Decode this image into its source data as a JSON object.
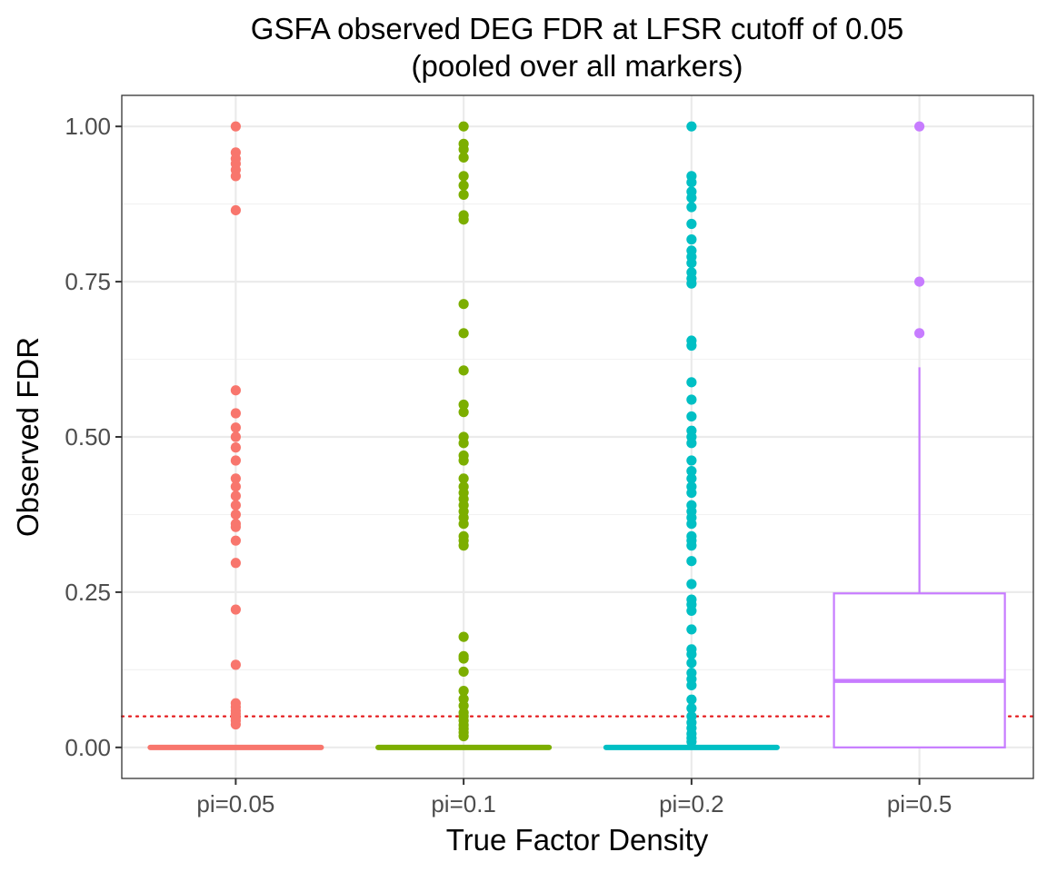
{
  "chart_data": {
    "type": "boxplot",
    "title_lines": [
      "GSFA observed DEG FDR at LFSR cutoff of 0.05",
      "(pooled over all markers)"
    ],
    "xlabel": "True Factor Density",
    "ylabel": "Observed FDR",
    "ylim": [
      -0.05,
      1.05
    ],
    "yticks": [
      0,
      0.25,
      0.5,
      0.75,
      1
    ],
    "ytick_labels": [
      "0.00",
      "0.25",
      "0.50",
      "0.75",
      "1.00"
    ],
    "grid": true,
    "legend": "none",
    "reference_line": {
      "y": 0.05,
      "color": "#e41a1c",
      "style": "dotted"
    },
    "categories": [
      "pi=0.05",
      "pi=0.1",
      "pi=0.2",
      "pi=0.5"
    ],
    "colors": [
      "#f8766d",
      "#7cae00",
      "#00bfc4",
      "#c77cff"
    ],
    "boxes": [
      {
        "min": 0,
        "q1": 0,
        "median": 0,
        "q3": 0,
        "max": 0
      },
      {
        "min": 0,
        "q1": 0,
        "median": 0,
        "q3": 0,
        "max": 0
      },
      {
        "min": 0,
        "q1": 0,
        "median": 0,
        "q3": 0,
        "max": 0
      },
      {
        "min": 0,
        "q1": 0,
        "median": 0.107,
        "q3": 0.248,
        "max": 0.612
      }
    ],
    "outliers": [
      [
        1.0,
        0.958,
        0.948,
        0.94,
        0.93,
        0.92,
        0.865,
        0.575,
        0.538,
        0.515,
        0.5,
        0.483,
        0.462,
        0.433,
        0.42,
        0.405,
        0.39,
        0.375,
        0.36,
        0.355,
        0.333,
        0.297,
        0.222,
        0.133,
        0.071,
        0.065,
        0.059,
        0.054,
        0.048,
        0.043,
        0.037
      ],
      [
        1.0,
        0.972,
        0.963,
        0.95,
        0.92,
        0.905,
        0.89,
        0.857,
        0.85,
        0.714,
        0.667,
        0.607,
        0.552,
        0.54,
        0.5,
        0.49,
        0.47,
        0.462,
        0.433,
        0.42,
        0.41,
        0.4,
        0.39,
        0.38,
        0.37,
        0.36,
        0.34,
        0.333,
        0.325,
        0.178,
        0.147,
        0.143,
        0.122,
        0.091,
        0.078,
        0.067,
        0.056,
        0.05,
        0.043,
        0.036,
        0.03,
        0.024,
        0.018
      ],
      [
        1.0,
        0.92,
        0.91,
        0.895,
        0.885,
        0.87,
        0.843,
        0.818,
        0.8,
        0.79,
        0.78,
        0.765,
        0.755,
        0.747,
        0.655,
        0.647,
        0.588,
        0.56,
        0.533,
        0.51,
        0.5,
        0.49,
        0.462,
        0.445,
        0.433,
        0.42,
        0.41,
        0.39,
        0.38,
        0.37,
        0.36,
        0.34,
        0.333,
        0.325,
        0.3,
        0.263,
        0.238,
        0.23,
        0.22,
        0.19,
        0.158,
        0.15,
        0.136,
        0.12,
        0.11,
        0.1,
        0.077,
        0.063,
        0.05,
        0.04,
        0.031,
        0.022,
        0.015,
        0.009
      ],
      [
        1.0,
        0.75,
        0.667
      ]
    ],
    "zero_band": [
      true,
      true,
      true,
      false
    ]
  }
}
